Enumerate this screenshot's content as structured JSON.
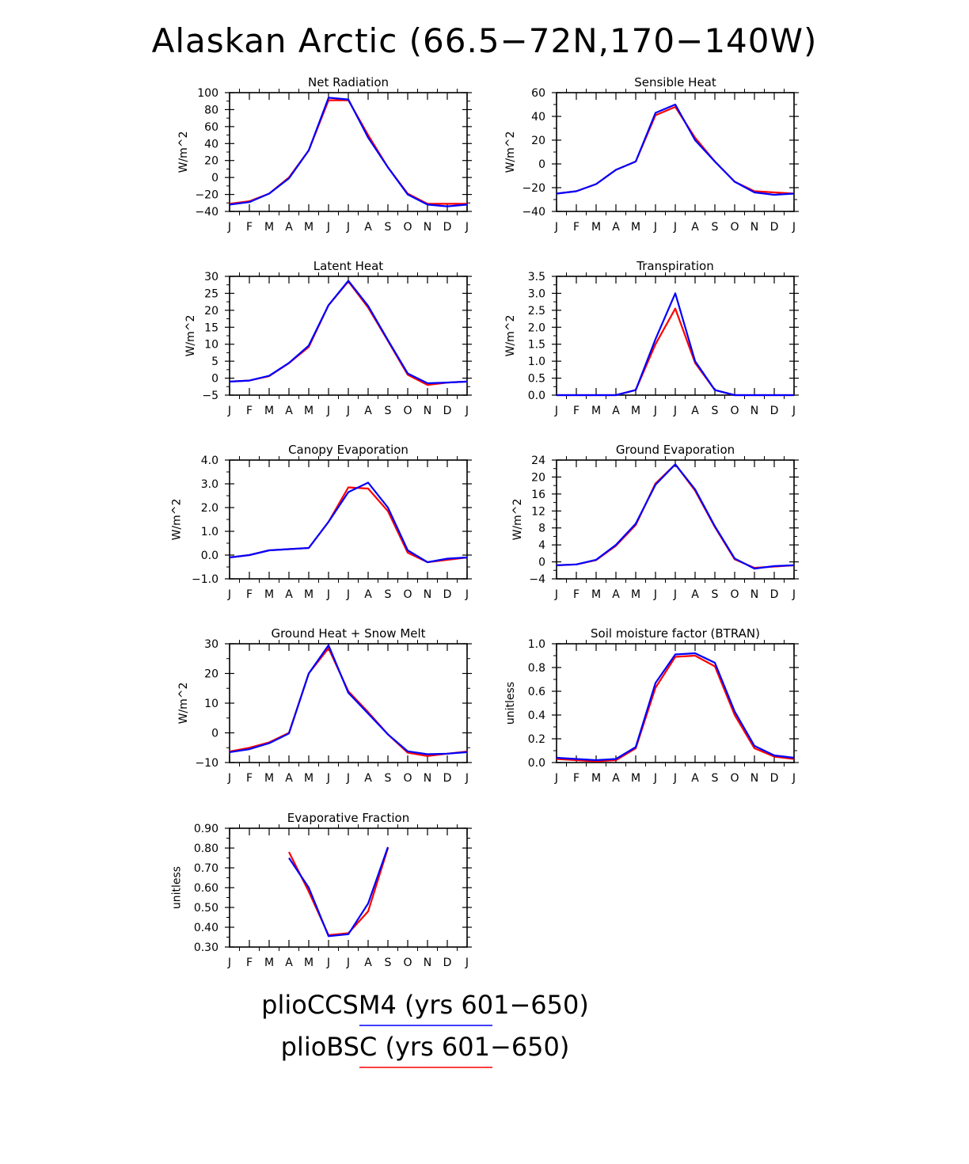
{
  "figure": {
    "title": "Alaskan Arctic (66.5−72N,170−140W)"
  },
  "colors": {
    "plioCCSM4": "#0000ff",
    "plioBSC": "#ff0000",
    "frame": "#000000"
  },
  "legend": {
    "entries": [
      {
        "label": "plioCCSM4 (yrs 601−650)",
        "color": "#0000ff"
      },
      {
        "label": "plioBSC (yrs 601−650)",
        "color": "#ff0000"
      }
    ]
  },
  "chart_data": [
    {
      "type": "line",
      "title": "Net Radiation",
      "ylabel": "W/m^2",
      "x": [
        "J",
        "F",
        "M",
        "A",
        "M",
        "J",
        "J",
        "A",
        "S",
        "O",
        "N",
        "D",
        "J"
      ],
      "ylim": [
        -40,
        100
      ],
      "yticks": [
        -40,
        -20,
        0,
        20,
        40,
        60,
        80,
        100
      ],
      "ytick_labels": [
        "−40",
        "−20",
        "0",
        "20",
        "40",
        "60",
        "80",
        "100"
      ],
      "series": [
        {
          "name": "plioBSC",
          "values": [
            -31,
            -28,
            -19,
            0,
            32,
            91,
            91,
            50,
            12,
            -19,
            -31,
            -31,
            -31
          ]
        },
        {
          "name": "plioCCSM4",
          "values": [
            -32,
            -29,
            -19,
            -1,
            32,
            94,
            92,
            47,
            12,
            -20,
            -32,
            -34,
            -32
          ]
        }
      ]
    },
    {
      "type": "line",
      "title": "Sensible Heat",
      "ylabel": "W/m^2",
      "x": [
        "J",
        "F",
        "M",
        "A",
        "M",
        "J",
        "J",
        "A",
        "S",
        "O",
        "N",
        "D",
        "J"
      ],
      "ylim": [
        -40,
        60
      ],
      "yticks": [
        -40,
        -20,
        0,
        20,
        40,
        60
      ],
      "ytick_labels": [
        "−40",
        "−20",
        "0",
        "20",
        "40",
        "60"
      ],
      "series": [
        {
          "name": "plioBSC",
          "values": [
            -25,
            -23,
            -17,
            -5,
            2,
            41,
            48,
            22,
            2,
            -15,
            -23,
            -24,
            -25
          ]
        },
        {
          "name": "plioCCSM4",
          "values": [
            -25,
            -23,
            -17,
            -5,
            2,
            43,
            50,
            20,
            2,
            -15,
            -24,
            -26,
            -25
          ]
        }
      ]
    },
    {
      "type": "line",
      "title": "Latent Heat",
      "ylabel": "W/m^2",
      "x": [
        "J",
        "F",
        "M",
        "A",
        "M",
        "J",
        "J",
        "A",
        "S",
        "O",
        "N",
        "D",
        "J"
      ],
      "ylim": [
        -5,
        30
      ],
      "yticks": [
        -5,
        0,
        5,
        10,
        15,
        20,
        25,
        30
      ],
      "ytick_labels": [
        "−5",
        "0",
        "5",
        "10",
        "15",
        "20",
        "25",
        "30"
      ],
      "series": [
        {
          "name": "plioBSC",
          "values": [
            -1,
            -0.7,
            0.6,
            4.4,
            9.2,
            21.5,
            28.5,
            20.8,
            11,
            1,
            -2,
            -1.3,
            -1
          ]
        },
        {
          "name": "plioCCSM4",
          "values": [
            -1,
            -0.7,
            0.7,
            4.5,
            9.6,
            21.5,
            28.7,
            21.3,
            11.2,
            1.4,
            -1.5,
            -1.3,
            -1
          ]
        }
      ]
    },
    {
      "type": "line",
      "title": "Transpiration",
      "ylabel": "W/m^2",
      "x": [
        "J",
        "F",
        "M",
        "A",
        "M",
        "J",
        "J",
        "A",
        "S",
        "O",
        "N",
        "D",
        "J"
      ],
      "ylim": [
        0,
        3.5
      ],
      "yticks": [
        0,
        0.5,
        1,
        1.5,
        2,
        2.5,
        3,
        3.5
      ],
      "ytick_labels": [
        "0.0",
        "0.5",
        "1.0",
        "1.5",
        "2.0",
        "2.5",
        "3.0",
        "3.5"
      ],
      "series": [
        {
          "name": "plioBSC",
          "values": [
            0,
            0,
            0,
            0,
            0.15,
            1.5,
            2.55,
            0.95,
            0.15,
            0,
            0,
            0,
            0
          ]
        },
        {
          "name": "plioCCSM4",
          "values": [
            0,
            0,
            0,
            0,
            0.15,
            1.65,
            3.0,
            1.0,
            0.15,
            0,
            0,
            0,
            0
          ]
        }
      ]
    },
    {
      "type": "line",
      "title": "Canopy Evaporation",
      "ylabel": "W/m^2",
      "x": [
        "J",
        "F",
        "M",
        "A",
        "M",
        "J",
        "J",
        "A",
        "S",
        "O",
        "N",
        "D",
        "J"
      ],
      "ylim": [
        -1,
        4
      ],
      "yticks": [
        -1,
        0,
        1,
        2,
        3,
        4
      ],
      "ytick_labels": [
        "−1.0",
        "0.0",
        "1.0",
        "2.0",
        "3.0",
        "4.0"
      ],
      "series": [
        {
          "name": "plioBSC",
          "values": [
            -0.1,
            0,
            0.2,
            0.25,
            0.3,
            1.4,
            2.85,
            2.8,
            1.85,
            0.1,
            -0.3,
            -0.2,
            -0.1
          ]
        },
        {
          "name": "plioCCSM4",
          "values": [
            -0.1,
            0,
            0.2,
            0.25,
            0.3,
            1.4,
            2.65,
            3.05,
            2.0,
            0.2,
            -0.3,
            -0.15,
            -0.1
          ]
        }
      ]
    },
    {
      "type": "line",
      "title": "Ground Evaporation",
      "ylabel": "W/m^2",
      "x": [
        "J",
        "F",
        "M",
        "A",
        "M",
        "J",
        "J",
        "A",
        "S",
        "O",
        "N",
        "D",
        "J"
      ],
      "ylim": [
        -4,
        24
      ],
      "yticks": [
        -4,
        0,
        4,
        8,
        12,
        16,
        20,
        24
      ],
      "ytick_labels": [
        "−4",
        "0",
        "4",
        "8",
        "12",
        "16",
        "20",
        "24"
      ],
      "series": [
        {
          "name": "plioBSC",
          "values": [
            -0.8,
            -0.6,
            0.4,
            3.8,
            8.7,
            18.5,
            23,
            16.8,
            8.2,
            0.6,
            -1.4,
            -1.1,
            -0.8
          ]
        },
        {
          "name": "plioCCSM4",
          "values": [
            -0.8,
            -0.6,
            0.5,
            4.0,
            9.0,
            18.2,
            23,
            17.1,
            8.4,
            0.8,
            -1.6,
            -1.0,
            -0.8
          ]
        }
      ]
    },
    {
      "type": "line",
      "title": "Ground Heat + Snow Melt",
      "ylabel": "W/m^2",
      "x": [
        "J",
        "F",
        "M",
        "A",
        "M",
        "J",
        "J",
        "A",
        "S",
        "O",
        "N",
        "D",
        "J"
      ],
      "ylim": [
        -10,
        30
      ],
      "yticks": [
        -10,
        0,
        10,
        20,
        30
      ],
      "ytick_labels": [
        "−10",
        "0",
        "10",
        "20",
        "30"
      ],
      "series": [
        {
          "name": "plioBSC",
          "values": [
            -6.3,
            -5,
            -3.2,
            0,
            20,
            28.5,
            14,
            7,
            -0.5,
            -6.7,
            -7.8,
            -7,
            -6.3
          ]
        },
        {
          "name": "plioCCSM4",
          "values": [
            -6.5,
            -5.5,
            -3.5,
            -0.2,
            20,
            29.5,
            13.5,
            6.5,
            -0.5,
            -6.2,
            -7.2,
            -7,
            -6.5
          ]
        }
      ]
    },
    {
      "type": "line",
      "title": "Soil moisture factor (BTRAN)",
      "ylabel": "unitless",
      "x": [
        "J",
        "F",
        "M",
        "A",
        "M",
        "J",
        "J",
        "A",
        "S",
        "O",
        "N",
        "D",
        "J"
      ],
      "ylim": [
        0,
        1
      ],
      "yticks": [
        0,
        0.2,
        0.4,
        0.6,
        0.8,
        1.0
      ],
      "ytick_labels": [
        "0.0",
        "0.2",
        "0.4",
        "0.6",
        "0.8",
        "1.0"
      ],
      "series": [
        {
          "name": "plioBSC",
          "values": [
            0.03,
            0.02,
            0.01,
            0.02,
            0.12,
            0.63,
            0.89,
            0.9,
            0.81,
            0.4,
            0.12,
            0.05,
            0.03
          ]
        },
        {
          "name": "plioCCSM4",
          "values": [
            0.04,
            0.03,
            0.02,
            0.03,
            0.13,
            0.67,
            0.91,
            0.92,
            0.84,
            0.43,
            0.14,
            0.06,
            0.04
          ]
        }
      ]
    },
    {
      "type": "line",
      "title": "Evaporative Fraction",
      "ylabel": "unitless",
      "x": [
        "J",
        "F",
        "M",
        "A",
        "M",
        "J",
        "J",
        "A",
        "S",
        "O",
        "N",
        "D",
        "J"
      ],
      "ylim": [
        0.3,
        0.9
      ],
      "yticks": [
        0.3,
        0.4,
        0.5,
        0.6,
        0.7,
        0.8,
        0.9
      ],
      "ytick_labels": [
        "0.30",
        "0.40",
        "0.50",
        "0.60",
        "0.70",
        "0.80",
        "0.90"
      ],
      "series": [
        {
          "name": "plioBSC",
          "values": [
            null,
            null,
            null,
            0.78,
            0.58,
            0.36,
            0.37,
            0.48,
            0.8,
            null,
            null,
            null,
            null
          ]
        },
        {
          "name": "plioCCSM4",
          "values": [
            null,
            null,
            null,
            0.75,
            0.6,
            0.355,
            0.365,
            0.52,
            0.805,
            null,
            null,
            null,
            null
          ]
        }
      ]
    }
  ]
}
